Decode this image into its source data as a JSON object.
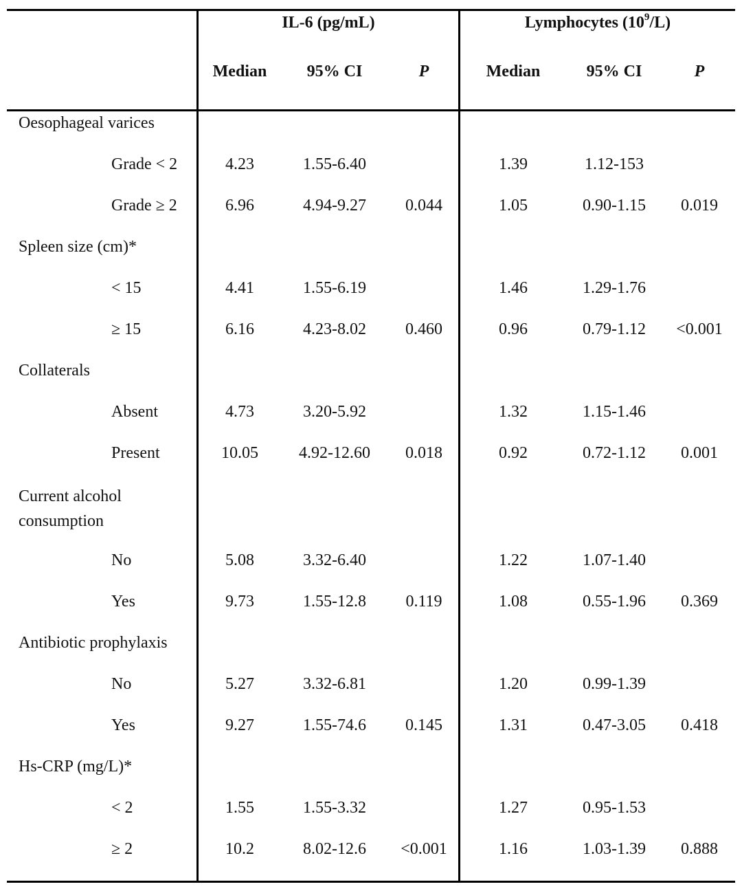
{
  "header": {
    "il6_title": "IL-6 (pg/mL)",
    "lymph_title_prefix": "Lymphocytes (10",
    "lymph_title_sup": "9",
    "lymph_title_suffix": "/L)",
    "subcolumns": {
      "il6": [
        "Median",
        "95% CI",
        "P"
      ],
      "lymph": [
        "Median",
        "95% CI",
        "P"
      ]
    }
  },
  "groups": [
    {
      "label": "Oesophageal varices",
      "rows": [
        {
          "label": "Grade < 2",
          "il6": [
            "4.23",
            "1.55-6.40",
            ""
          ],
          "lymph": [
            "1.39",
            "1.12-153",
            ""
          ]
        },
        {
          "label": "Grade ≥ 2",
          "il6": [
            "6.96",
            "4.94-9.27",
            "0.044"
          ],
          "lymph": [
            "1.05",
            "0.90-1.15",
            "0.019"
          ]
        }
      ]
    },
    {
      "label": "Spleen size (cm)*",
      "rows": [
        {
          "label": "< 15",
          "il6": [
            "4.41",
            "1.55-6.19",
            ""
          ],
          "lymph": [
            "1.46",
            "1.29-1.76",
            ""
          ]
        },
        {
          "label": "≥ 15",
          "il6": [
            "6.16",
            "4.23-8.02",
            "0.460"
          ],
          "lymph": [
            "0.96",
            "0.79-1.12",
            "<0.001"
          ]
        }
      ]
    },
    {
      "label": "Collaterals",
      "rows": [
        {
          "label": "Absent",
          "il6": [
            "4.73",
            "3.20-5.92",
            ""
          ],
          "lymph": [
            "1.32",
            "1.15-1.46",
            ""
          ]
        },
        {
          "label": "Present",
          "il6": [
            "10.05",
            "4.92-12.60",
            "0.018"
          ],
          "lymph": [
            "0.92",
            "0.72-1.12",
            "0.001"
          ]
        }
      ]
    },
    {
      "label": "Current alcohol consumption",
      "label_lines": [
        "Current alcohol",
        "consumption"
      ],
      "rows": [
        {
          "label": "No",
          "il6": [
            "5.08",
            "3.32-6.40",
            ""
          ],
          "lymph": [
            "1.22",
            "1.07-1.40",
            ""
          ]
        },
        {
          "label": "Yes",
          "il6": [
            "9.73",
            "1.55-12.8",
            "0.119"
          ],
          "lymph": [
            "1.08",
            "0.55-1.96",
            "0.369"
          ]
        }
      ]
    },
    {
      "label": "Antibiotic prophylaxis",
      "rows": [
        {
          "label": "No",
          "il6": [
            "5.27",
            "3.32-6.81",
            ""
          ],
          "lymph": [
            "1.20",
            "0.99-1.39",
            ""
          ]
        },
        {
          "label": "Yes",
          "il6": [
            "9.27",
            "1.55-74.6",
            "0.145"
          ],
          "lymph": [
            "1.31",
            "0.47-3.05",
            "0.418"
          ]
        }
      ]
    },
    {
      "label": "Hs-CRP (mg/L)*",
      "rows": [
        {
          "label": "< 2",
          "il6": [
            "1.55",
            "1.55-3.32",
            ""
          ],
          "lymph": [
            "1.27",
            "0.95-1.53",
            ""
          ]
        },
        {
          "label": "≥ 2",
          "il6": [
            "10.2",
            "8.02-12.6",
            "<0.001"
          ],
          "lymph": [
            "1.16",
            "1.03-1.39",
            "0.888"
          ]
        }
      ]
    }
  ]
}
